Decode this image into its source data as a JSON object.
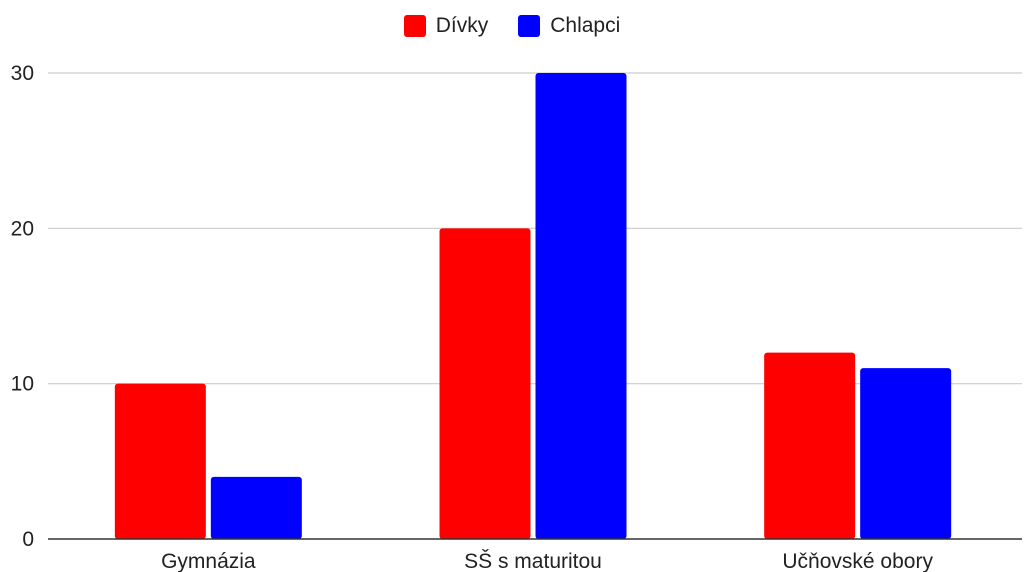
{
  "chart_data": {
    "type": "bar",
    "categories": [
      "Gymnázia",
      "SŠ s maturitou",
      "Učňovské obory"
    ],
    "series": [
      {
        "name": "Dívky",
        "values": [
          10,
          20,
          12
        ],
        "color": "#ff0000"
      },
      {
        "name": "Chlapci",
        "values": [
          4,
          30,
          11
        ],
        "color": "#0000ff"
      }
    ],
    "xlabel": "",
    "ylabel": "",
    "ylim": [
      0,
      30
    ],
    "yticks": [
      0,
      10,
      20,
      30
    ],
    "grid": true,
    "legend_position": "top-center",
    "colors": {
      "gridline": "#cccccc",
      "axis": "#333333",
      "text": "#222222"
    }
  }
}
